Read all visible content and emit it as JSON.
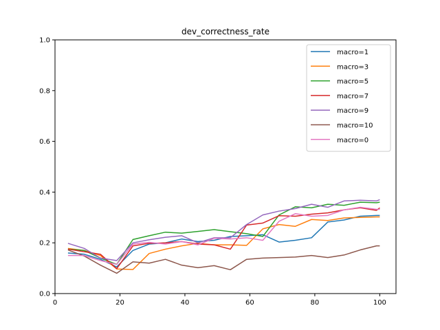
{
  "chart_data": {
    "type": "line",
    "title": "dev_correctness_rate",
    "xlabel": "",
    "ylabel": "",
    "xlim": [
      0,
      105
    ],
    "ylim": [
      0.0,
      1.0
    ],
    "xticks": [
      0,
      20,
      40,
      60,
      80,
      100
    ],
    "yticks": [
      0.0,
      0.2,
      0.4,
      0.6,
      0.8,
      1.0
    ],
    "grid": false,
    "legend_position": "top-right",
    "x": [
      4,
      9,
      14,
      19,
      24,
      29,
      34,
      39,
      44,
      49,
      54,
      59,
      64,
      69,
      74,
      79,
      84,
      89,
      94,
      99,
      100
    ],
    "series": [
      {
        "name": "macro=1",
        "color": "#1f77b4",
        "values": [
          0.16,
          0.155,
          0.135,
          0.105,
          0.17,
          0.195,
          0.2,
          0.215,
          0.205,
          0.21,
          0.225,
          0.228,
          0.232,
          0.203,
          0.21,
          0.22,
          0.282,
          0.29,
          0.305,
          0.308,
          0.308
        ]
      },
      {
        "name": "macro=3",
        "color": "#ff7f0e",
        "values": [
          0.178,
          0.17,
          0.15,
          0.097,
          0.095,
          0.158,
          0.175,
          0.188,
          0.198,
          0.192,
          0.192,
          0.19,
          0.255,
          0.272,
          0.265,
          0.292,
          0.288,
          0.298,
          0.3,
          0.302,
          0.302
        ]
      },
      {
        "name": "macro=5",
        "color": "#2ca02c",
        "values": [
          0.175,
          0.17,
          0.14,
          0.115,
          0.213,
          0.228,
          0.242,
          0.238,
          0.245,
          0.252,
          0.244,
          0.236,
          0.225,
          0.31,
          0.342,
          0.338,
          0.352,
          0.348,
          0.36,
          0.358,
          0.36
        ]
      },
      {
        "name": "macro=7",
        "color": "#d62728",
        "values": [
          0.175,
          0.165,
          0.155,
          0.098,
          0.188,
          0.198,
          0.2,
          0.205,
          0.195,
          0.192,
          0.175,
          0.27,
          0.278,
          0.307,
          0.305,
          0.313,
          0.318,
          0.33,
          0.338,
          0.328,
          0.338
        ]
      },
      {
        "name": "macro=9",
        "color": "#9467bd",
        "values": [
          0.198,
          0.178,
          0.14,
          0.13,
          0.2,
          0.212,
          0.222,
          0.228,
          0.2,
          0.22,
          0.22,
          0.272,
          0.31,
          0.325,
          0.335,
          0.352,
          0.34,
          0.365,
          0.368,
          0.365,
          0.37
        ]
      },
      {
        "name": "macro=10",
        "color": "#8c564b",
        "values": [
          0.172,
          0.148,
          0.112,
          0.08,
          0.125,
          0.12,
          0.135,
          0.112,
          0.102,
          0.11,
          0.094,
          0.135,
          0.14,
          0.142,
          0.144,
          0.15,
          0.142,
          0.152,
          0.172,
          0.188,
          0.188
        ]
      },
      {
        "name": "macro=0",
        "color": "#e377c2",
        "values": [
          0.15,
          0.15,
          0.13,
          0.115,
          0.195,
          0.202,
          0.195,
          0.205,
          0.192,
          0.218,
          0.215,
          0.22,
          0.21,
          0.285,
          0.315,
          0.305,
          0.308,
          0.33,
          0.34,
          0.332,
          0.332
        ]
      }
    ]
  }
}
